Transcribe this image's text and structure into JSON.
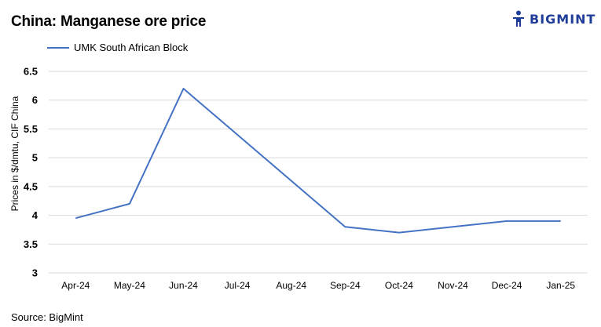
{
  "brand": {
    "name": "BIGMINT",
    "logo_icon": "bigmint-figure-icon",
    "logo_color": "#1f3d99"
  },
  "source_text": "Source: BigMint",
  "colors": {
    "series": "#4472c4",
    "grid": "#d9d9d9"
  },
  "chart_data": {
    "type": "line",
    "title": "China: Manganese ore price",
    "xlabel": "",
    "ylabel": "Prices in $/dmtu, CIF China",
    "categories": [
      "Apr-24",
      "May-24",
      "Jun-24",
      "Jul-24",
      "Aug-24",
      "Sep-24",
      "Oct-24",
      "Nov-24",
      "Dec-24",
      "Jan-25"
    ],
    "series": [
      {
        "name": "UMK South African Block",
        "values": [
          3.95,
          4.2,
          6.2,
          5.4,
          4.6,
          3.8,
          3.7,
          3.8,
          3.9,
          3.9
        ]
      }
    ],
    "ylim": [
      3,
      6.5
    ],
    "yticks": [
      "3",
      "3.5",
      "4",
      "4.5",
      "5",
      "5.5",
      "6",
      "6.5"
    ],
    "grid": true,
    "legend_position": "top-left"
  }
}
